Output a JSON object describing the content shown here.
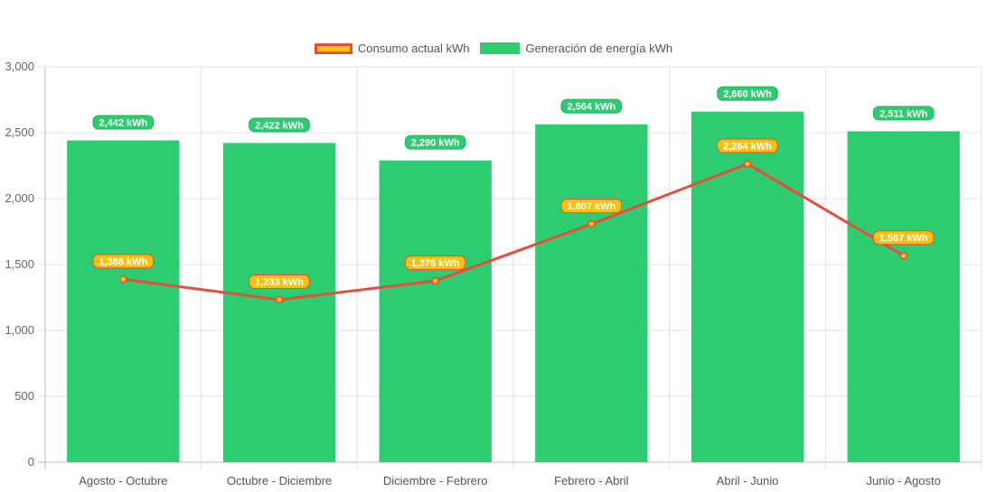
{
  "chart_data": {
    "type": "bar",
    "categories": [
      "Agosto - Octubre",
      "Octubre - Diciembre",
      "Diciembre - Febrero",
      "Febrero - Abril",
      "Abril - Junio",
      "Junio - Agosto"
    ],
    "series": [
      {
        "name": "Consumo actual kWh",
        "type": "line",
        "values": [
          1388,
          1233,
          1376,
          1807,
          2264,
          1567
        ],
        "labels": [
          "1,388 kWh",
          "1,233 kWh",
          "1,376 kWh",
          "1,807 kWh",
          "2,264 kWh",
          "1,567 kWh"
        ],
        "line_color": "#e74c3c",
        "fill_color": "#f5c20f"
      },
      {
        "name": "Generación de energía kWh",
        "type": "bar",
        "values": [
          2442,
          2422,
          2290,
          2564,
          2660,
          2511
        ],
        "labels": [
          "2,442 kWh",
          "2,422 kWh",
          "2,290 kWh",
          "2,564 kWh",
          "2,660 kWh",
          "2,511 kWh"
        ],
        "color": "#2ecc71"
      }
    ],
    "y_ticks": [
      "0",
      "500",
      "1,000",
      "1,500",
      "2,000",
      "2,500",
      "3,000"
    ],
    "ylim": [
      0,
      3000
    ],
    "grid": true,
    "legend_position": "top"
  }
}
